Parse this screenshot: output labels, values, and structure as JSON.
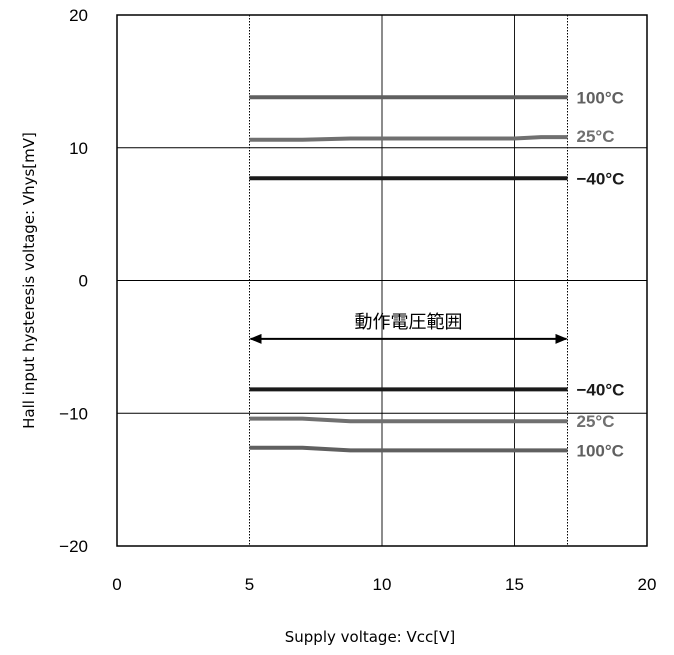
{
  "chart_data": {
    "type": "line",
    "xlabel": "Supply voltage: Vcc[V]",
    "ylabel": "Hall input hysteresis voltage: Vhys[mV]",
    "xlim": [
      0,
      20
    ],
    "ylim": [
      -20,
      20
    ],
    "x_ticks": [
      "0",
      "5",
      "10",
      "15",
      "20"
    ],
    "y_ticks": [
      "20",
      "10",
      "0",
      "−10",
      "−20"
    ],
    "grid": true,
    "operating_range": {
      "x": [
        5,
        17
      ],
      "label": "動作電圧範囲"
    },
    "series": [
      {
        "name": "100°C",
        "color": "#606060",
        "x": [
          5,
          17
        ],
        "y": [
          13.8,
          13.8
        ]
      },
      {
        "name": "25°C",
        "color": "#707070",
        "x": [
          5,
          7,
          8.8,
          15,
          16,
          17
        ],
        "y": [
          10.6,
          10.6,
          10.7,
          10.7,
          10.8,
          10.8
        ]
      },
      {
        "name": "−40°C",
        "color": "#1a1a1a",
        "x": [
          5,
          17
        ],
        "y": [
          7.7,
          7.7
        ]
      },
      {
        "name": "−40°C",
        "color": "#1a1a1a",
        "x": [
          5,
          17
        ],
        "y": [
          -8.2,
          -8.2
        ]
      },
      {
        "name": "25°C",
        "color": "#707070",
        "x": [
          5,
          7,
          8.8,
          17
        ],
        "y": [
          -10.4,
          -10.4,
          -10.6,
          -10.6
        ]
      },
      {
        "name": "100°C",
        "color": "#606060",
        "x": [
          5,
          7,
          8.8,
          17
        ],
        "y": [
          -12.6,
          -12.6,
          -12.8,
          -12.8
        ]
      }
    ]
  }
}
